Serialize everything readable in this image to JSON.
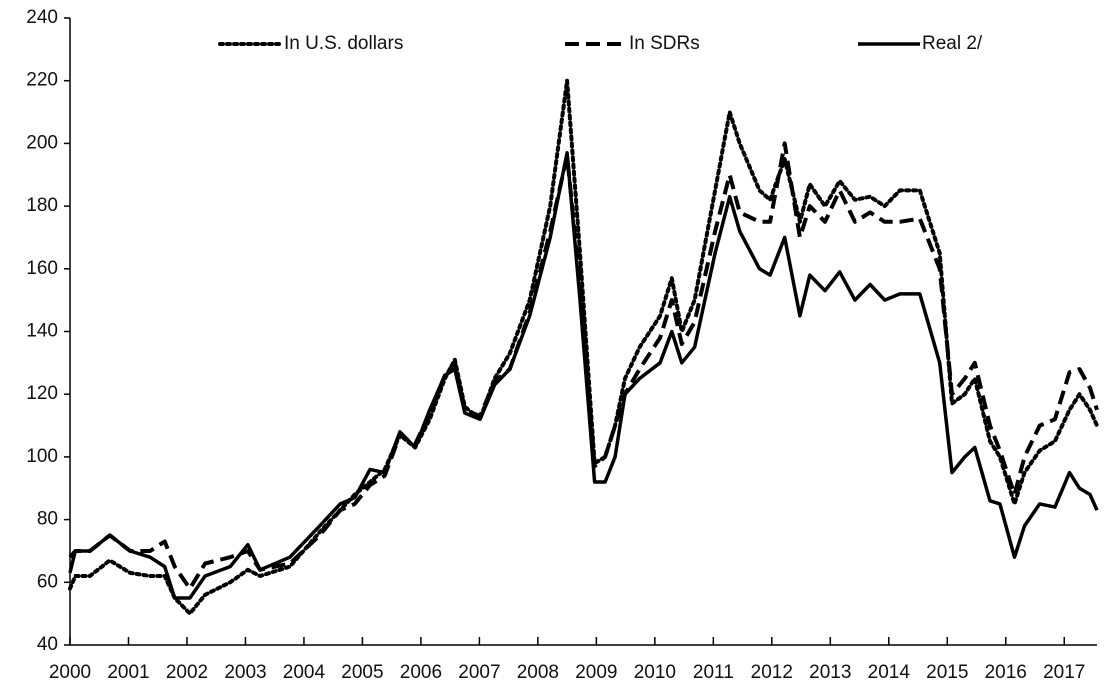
{
  "chart_data": {
    "type": "line",
    "x": [
      2000.0,
      2000.09,
      2000.34,
      2000.68,
      2001.03,
      2001.37,
      2001.62,
      2001.79,
      2002.05,
      2002.31,
      2002.74,
      2003.04,
      2003.25,
      2003.76,
      2004.27,
      2004.62,
      2004.87,
      2005.13,
      2005.38,
      2005.64,
      2005.9,
      2006.15,
      2006.41,
      2006.58,
      2006.75,
      2007.01,
      2007.26,
      2007.52,
      2007.86,
      2008.21,
      2008.5,
      2008.72,
      2008.97,
      2009.15,
      2009.32,
      2009.49,
      2009.74,
      2010.09,
      2010.29,
      2010.46,
      2010.68,
      2011.03,
      2011.28,
      2011.45,
      2011.79,
      2011.97,
      2012.22,
      2012.48,
      2012.65,
      2012.91,
      2013.16,
      2013.42,
      2013.68,
      2013.93,
      2014.19,
      2014.53,
      2014.87,
      2015.08,
      2015.3,
      2015.47,
      2015.73,
      2015.9,
      2016.15,
      2016.32,
      2016.58,
      2016.84,
      2017.09,
      2017.26,
      2017.44,
      2017.56
    ],
    "series": [
      {
        "name": "In U.S. dollars",
        "color": "#000000",
        "dash": "dotted",
        "values": [
          58,
          62,
          62,
          67,
          63,
          62,
          62,
          55,
          50,
          56,
          60,
          64,
          62,
          65,
          76,
          83,
          88,
          92,
          96,
          107,
          103,
          112,
          125,
          131,
          116,
          112,
          125,
          133,
          150,
          180,
          220,
          165,
          98,
          100,
          110,
          125,
          135,
          145,
          157,
          140,
          150,
          185,
          210,
          200,
          185,
          182,
          195,
          175,
          187,
          180,
          188,
          182,
          183,
          180,
          185,
          185,
          165,
          117,
          120,
          125,
          105,
          100,
          85,
          95,
          102,
          105,
          115,
          120,
          115,
          110
        ]
      },
      {
        "name": "In SDRs",
        "color": "#000000",
        "dash": "dashed",
        "values": [
          68,
          70,
          70,
          75,
          70,
          70,
          73,
          65,
          58,
          66,
          68,
          70,
          64,
          66,
          75,
          83,
          85,
          91,
          94,
          107,
          104,
          114,
          126,
          130,
          115,
          113,
          124,
          128,
          146,
          172,
          196,
          155,
          97,
          100,
          110,
          120,
          128,
          138,
          150,
          136,
          143,
          172,
          190,
          178,
          175,
          175,
          200,
          170,
          180,
          175,
          185,
          175,
          178,
          175,
          175,
          176,
          160,
          120,
          125,
          130,
          110,
          102,
          88,
          100,
          110,
          112,
          127,
          128,
          122,
          115
        ]
      },
      {
        "name": "Real 2/",
        "color": "#000000",
        "dash": "solid",
        "values": [
          63,
          70,
          70,
          75,
          70,
          68,
          65,
          55,
          55,
          62,
          65,
          72,
          64,
          68,
          78,
          85,
          87,
          96,
          95,
          108,
          103,
          115,
          126,
          128,
          114,
          112,
          123,
          128,
          145,
          170,
          197,
          150,
          92,
          92,
          100,
          120,
          125,
          130,
          140,
          130,
          135,
          165,
          183,
          172,
          160,
          158,
          170,
          145,
          158,
          153,
          159,
          150,
          155,
          150,
          152,
          152,
          130,
          95,
          100,
          103,
          86,
          85,
          68,
          78,
          85,
          84,
          95,
          90,
          88,
          83
        ]
      }
    ],
    "xlim": [
      2000,
      2017.56
    ],
    "xticks": [
      2000,
      2001,
      2002,
      2003,
      2004,
      2005,
      2006,
      2007,
      2008,
      2009,
      2010,
      2011,
      2012,
      2013,
      2014,
      2015,
      2016,
      2017
    ],
    "ylim": [
      40,
      240
    ],
    "yticks": [
      40,
      60,
      80,
      100,
      120,
      140,
      160,
      180,
      200,
      220,
      240
    ],
    "grid": false,
    "legend": "top"
  }
}
